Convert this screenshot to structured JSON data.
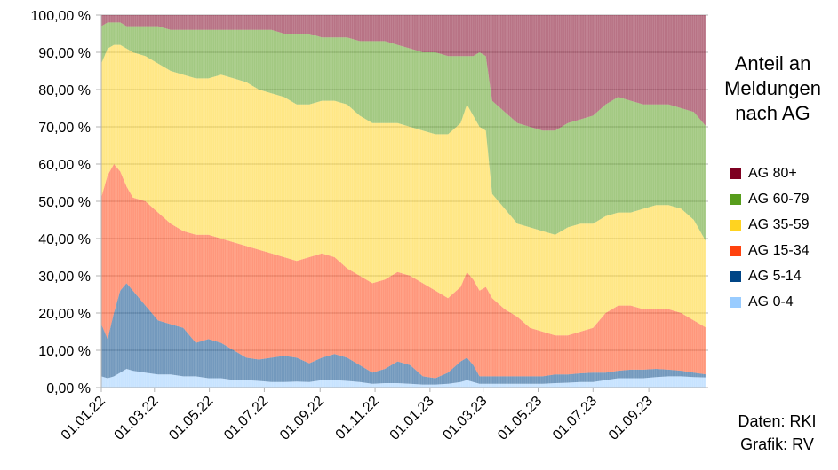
{
  "chart_data": {
    "type": "area",
    "stacked": true,
    "title_lines": [
      "Anteil an",
      "Meldungen",
      "nach AG"
    ],
    "ylim": [
      0,
      100
    ],
    "y_ticks": [
      "0,00 %",
      "10,00 %",
      "20,00 %",
      "30,00 %",
      "40,00 %",
      "50,00 %",
      "60,00 %",
      "70,00 %",
      "80,00 %",
      "90,00 %",
      "100,00 %"
    ],
    "x_range": [
      "2022-01-01",
      "2023-11-06"
    ],
    "x_ticks": [
      {
        "label": "01.01.22",
        "date": "2022-01-01"
      },
      {
        "label": "01.03.22",
        "date": "2022-03-01"
      },
      {
        "label": "01.05.22",
        "date": "2022-05-01"
      },
      {
        "label": "01.07.22",
        "date": "2022-07-01"
      },
      {
        "label": "01.09.22",
        "date": "2022-09-01"
      },
      {
        "label": "01.11.22",
        "date": "2022-11-01"
      },
      {
        "label": "01.01.23",
        "date": "2023-01-01"
      },
      {
        "label": "01.03.23",
        "date": "2023-03-01"
      },
      {
        "label": "01.05.23",
        "date": "2023-05-01"
      },
      {
        "label": "01.07.23",
        "date": "2023-07-01"
      },
      {
        "label": "01.09.23",
        "date": "2023-09-01"
      }
    ],
    "grid": true,
    "legend_position": "right",
    "dates": [
      "2022-01-01",
      "2022-01-08",
      "2022-01-15",
      "2022-01-22",
      "2022-01-29",
      "2022-02-05",
      "2022-02-19",
      "2022-03-05",
      "2022-03-19",
      "2022-04-02",
      "2022-04-16",
      "2022-04-30",
      "2022-05-14",
      "2022-05-28",
      "2022-06-11",
      "2022-06-25",
      "2022-07-09",
      "2022-07-23",
      "2022-08-06",
      "2022-08-20",
      "2022-09-03",
      "2022-09-17",
      "2022-10-01",
      "2022-10-15",
      "2022-10-29",
      "2022-11-12",
      "2022-11-26",
      "2022-12-10",
      "2022-12-24",
      "2023-01-07",
      "2023-01-21",
      "2023-02-04",
      "2023-02-11",
      "2023-02-18",
      "2023-02-25",
      "2023-03-04",
      "2023-03-11",
      "2023-03-25",
      "2023-04-08",
      "2023-04-22",
      "2023-05-06",
      "2023-05-20",
      "2023-06-03",
      "2023-06-17",
      "2023-07-01",
      "2023-07-15",
      "2023-07-29",
      "2023-08-12",
      "2023-08-26",
      "2023-09-09",
      "2023-09-23",
      "2023-10-07",
      "2023-10-21",
      "2023-11-04"
    ],
    "series": [
      {
        "name": "AG 0-4",
        "color": "#99ccff",
        "cumulative": [
          3,
          2.5,
          3,
          4,
          5,
          4.5,
          4,
          3.5,
          3.5,
          3,
          3,
          2.5,
          2.5,
          2,
          2,
          1.8,
          1.5,
          1.5,
          1.6,
          1.5,
          2,
          2,
          1.8,
          1.5,
          1,
          1.2,
          1.2,
          1,
          0.8,
          0.8,
          1,
          1.5,
          2,
          1.5,
          1,
          1,
          1,
          1,
          1,
          1,
          1,
          1.2,
          1.3,
          1.5,
          1.5,
          2,
          2.5,
          2.5,
          2.5,
          2.8,
          3,
          3,
          2.8,
          2.7
        ]
      },
      {
        "name": "AG 5-14",
        "color": "#004586",
        "cumulative": [
          17,
          13,
          20,
          26,
          28,
          26,
          22,
          18,
          17,
          16,
          12,
          13,
          12,
          10,
          8,
          7.5,
          8,
          8.5,
          8,
          6.5,
          8,
          9,
          8,
          6,
          4,
          5,
          7,
          6,
          3,
          2.5,
          4,
          7,
          8,
          6,
          3,
          3,
          3,
          3,
          3,
          3,
          3,
          3.5,
          3.5,
          3.8,
          4,
          4,
          4.5,
          4.8,
          4.8,
          5,
          4.8,
          4.5,
          4,
          3.5
        ]
      },
      {
        "name": "AG 15-34",
        "color": "#ff420e",
        "cumulative": [
          51,
          57,
          60,
          58,
          54,
          51,
          50,
          47,
          44,
          42,
          41,
          41,
          40,
          39,
          38,
          37,
          36,
          35,
          34,
          35,
          36,
          35,
          32,
          30,
          28,
          29,
          31,
          30,
          28,
          26,
          24,
          27,
          31,
          29,
          26,
          27,
          24,
          21,
          19,
          16,
          15,
          14,
          14,
          15,
          16,
          20,
          22,
          22,
          21,
          21,
          21,
          20,
          18,
          16
        ]
      },
      {
        "name": "AG 35-59",
        "color": "#ffd320",
        "cumulative": [
          87,
          91,
          92,
          92,
          91,
          90,
          89,
          87,
          85,
          84,
          83,
          83,
          84,
          83,
          82,
          80,
          79,
          78,
          76,
          76,
          77,
          77,
          76,
          73,
          71,
          71,
          71,
          70,
          69,
          68,
          68,
          71,
          76,
          73,
          70,
          69,
          52,
          48,
          44,
          43,
          42,
          41,
          43,
          44,
          44,
          46,
          47,
          47,
          48,
          49,
          49,
          48,
          45,
          39
        ]
      },
      {
        "name": "AG 60-79",
        "color": "#579d1c",
        "cumulative": [
          97,
          98,
          98,
          98,
          97,
          97,
          97,
          97,
          96,
          96,
          96,
          96,
          96,
          96,
          96,
          96,
          96,
          95,
          95,
          95,
          94,
          94,
          94,
          93,
          93,
          93,
          92,
          91,
          90,
          90,
          89,
          89,
          89,
          89,
          90,
          89,
          77,
          74,
          71,
          70,
          69,
          69,
          71,
          72,
          73,
          76,
          78,
          77,
          76,
          76,
          76,
          75,
          74,
          70
        ]
      },
      {
        "name": "AG 80+",
        "color": "#7e0021",
        "cumulative": [
          100,
          100,
          100,
          100,
          100,
          100,
          100,
          100,
          100,
          100,
          100,
          100,
          100,
          100,
          100,
          100,
          100,
          100,
          100,
          100,
          100,
          100,
          100,
          100,
          100,
          100,
          100,
          100,
          100,
          100,
          100,
          100,
          100,
          100,
          100,
          100,
          100,
          100,
          100,
          100,
          100,
          100,
          100,
          100,
          100,
          100,
          100,
          100,
          100,
          100,
          100,
          100,
          100,
          100
        ]
      }
    ],
    "legend_order": [
      "AG 80+",
      "AG 60-79",
      "AG 35-59",
      "AG 15-34",
      "AG 5-14",
      "AG 0-4"
    ],
    "source_lines": [
      "Daten: RKI",
      "Grafik: RV"
    ]
  }
}
